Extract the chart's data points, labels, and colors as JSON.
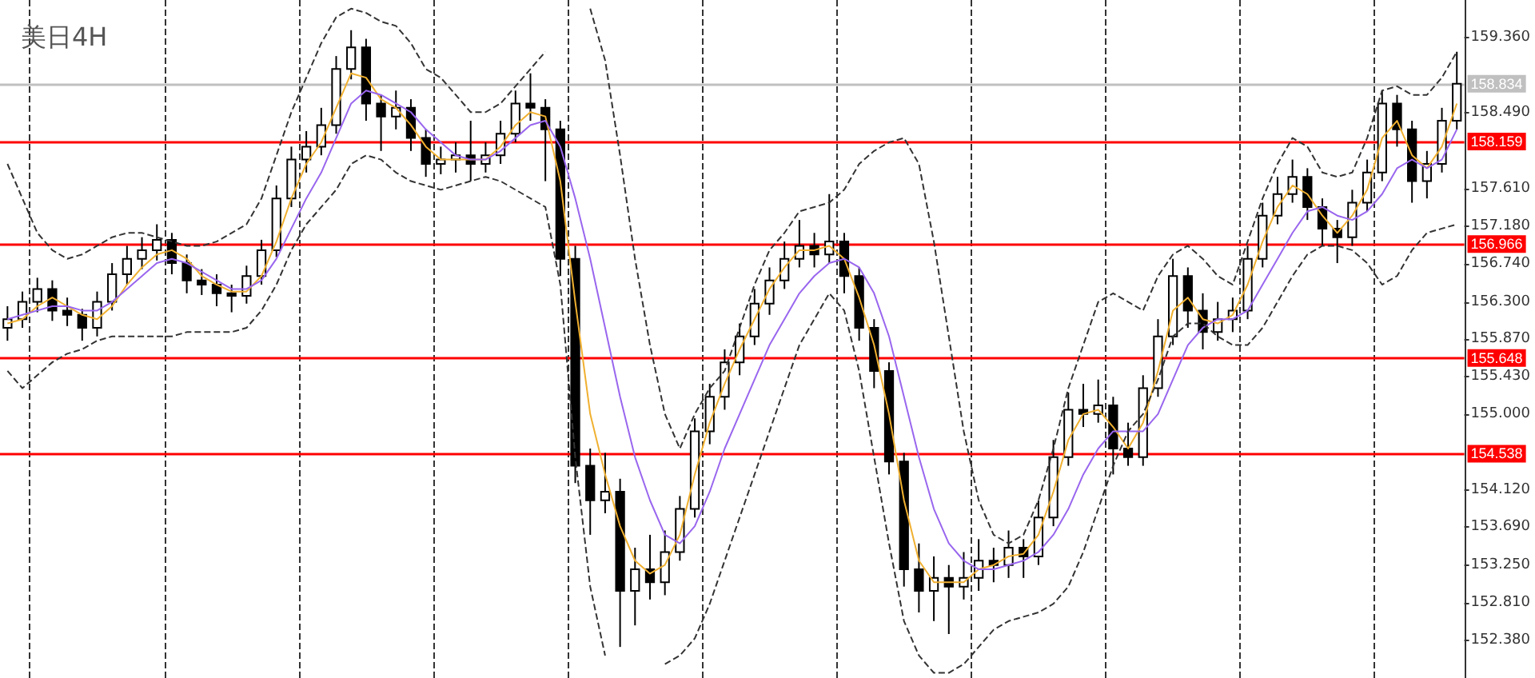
{
  "chart_data": {
    "type": "candlestick",
    "title": "美日4H",
    "categories": [
      null,
      null,
      null,
      null,
      null,
      null,
      null,
      null,
      null,
      null,
      null,
      null,
      null,
      null,
      null,
      null,
      null,
      null,
      null,
      null,
      null,
      null,
      null,
      null,
      null,
      null,
      null,
      null,
      null,
      null,
      null,
      null,
      null,
      null,
      null,
      null,
      null,
      null,
      null,
      null,
      null,
      null,
      null,
      null,
      null,
      null,
      null,
      null,
      null,
      null,
      null,
      null,
      null,
      null,
      null,
      null,
      null,
      null,
      null,
      null,
      null,
      null,
      null,
      null,
      null,
      null,
      null,
      null,
      null,
      null,
      null,
      null,
      null,
      null,
      null,
      null,
      null,
      null,
      null,
      null,
      null,
      null,
      null,
      null,
      null,
      null,
      null,
      null,
      null,
      null,
      null,
      null,
      null,
      null,
      null,
      null,
      null,
      null
    ],
    "series": [
      {
        "color": "#000000",
        "ohlc": [
          [
            156.0,
            156.25,
            155.85,
            156.1
          ],
          [
            156.1,
            156.42,
            156.0,
            156.3
          ],
          [
            156.3,
            156.58,
            156.18,
            156.45
          ],
          [
            156.45,
            156.55,
            156.08,
            156.2
          ],
          [
            156.2,
            156.35,
            156.02,
            156.15
          ],
          [
            156.15,
            156.22,
            155.85,
            156.0
          ],
          [
            156.0,
            156.42,
            155.9,
            156.3
          ],
          [
            156.3,
            156.75,
            156.2,
            156.62
          ],
          [
            156.62,
            156.95,
            156.5,
            156.8
          ],
          [
            156.8,
            157.05,
            156.68,
            156.9
          ],
          [
            156.9,
            157.2,
            156.78,
            157.02
          ],
          [
            157.02,
            157.1,
            156.62,
            156.75
          ],
          [
            156.75,
            156.85,
            156.4,
            156.55
          ],
          [
            156.55,
            156.68,
            156.38,
            156.5
          ],
          [
            156.5,
            156.62,
            156.25,
            156.4
          ],
          [
            156.4,
            156.5,
            156.18,
            156.37
          ],
          [
            156.37,
            156.72,
            156.28,
            156.6
          ],
          [
            156.6,
            157.02,
            156.5,
            156.9
          ],
          [
            156.9,
            157.65,
            156.82,
            157.5
          ],
          [
            157.5,
            158.1,
            157.4,
            157.95
          ],
          [
            157.95,
            158.28,
            157.8,
            158.1
          ],
          [
            158.1,
            158.55,
            158.0,
            158.35
          ],
          [
            158.35,
            159.15,
            158.25,
            159.0
          ],
          [
            159.0,
            159.45,
            158.88,
            159.25
          ],
          [
            159.25,
            159.35,
            158.4,
            158.6
          ],
          [
            158.6,
            158.7,
            158.05,
            158.45
          ],
          [
            158.45,
            158.75,
            158.3,
            158.55
          ],
          [
            158.55,
            158.65,
            158.05,
            158.2
          ],
          [
            158.2,
            158.3,
            157.75,
            157.9
          ],
          [
            157.9,
            158.1,
            157.78,
            157.95
          ],
          [
            157.95,
            158.15,
            157.8,
            158.0
          ],
          [
            158.0,
            158.4,
            157.7,
            157.9
          ],
          [
            157.9,
            158.15,
            157.8,
            158.0
          ],
          [
            158.0,
            158.4,
            157.9,
            158.25
          ],
          [
            158.25,
            158.75,
            158.15,
            158.6
          ],
          [
            158.6,
            158.95,
            158.4,
            158.55
          ],
          [
            158.55,
            158.65,
            157.7,
            158.3
          ],
          [
            158.3,
            158.4,
            156.6,
            156.8
          ],
          [
            156.8,
            156.95,
            154.2,
            154.4
          ],
          [
            154.4,
            154.6,
            153.6,
            154.0
          ],
          [
            154.0,
            154.55,
            153.85,
            154.1
          ],
          [
            154.1,
            154.25,
            152.3,
            152.95
          ],
          [
            152.95,
            153.45,
            152.55,
            153.2
          ],
          [
            153.2,
            153.6,
            152.85,
            153.05
          ],
          [
            153.05,
            153.65,
            152.9,
            153.4
          ],
          [
            153.4,
            154.05,
            153.3,
            153.9
          ],
          [
            153.9,
            154.95,
            153.8,
            154.8
          ],
          [
            154.8,
            155.35,
            154.65,
            155.2
          ],
          [
            155.2,
            155.75,
            155.05,
            155.6
          ],
          [
            155.6,
            156.05,
            155.45,
            155.9
          ],
          [
            155.9,
            156.45,
            155.8,
            156.28
          ],
          [
            156.28,
            156.7,
            156.15,
            156.55
          ],
          [
            156.55,
            157.0,
            156.45,
            156.8
          ],
          [
            156.8,
            157.25,
            156.7,
            156.95
          ],
          [
            156.95,
            157.1,
            156.7,
            156.85
          ],
          [
            156.85,
            157.55,
            156.75,
            157.0
          ],
          [
            157.0,
            157.1,
            156.4,
            156.6
          ],
          [
            156.6,
            156.7,
            155.85,
            156.0
          ],
          [
            156.0,
            156.1,
            155.3,
            155.5
          ],
          [
            155.5,
            155.6,
            154.3,
            154.45
          ],
          [
            154.45,
            154.55,
            153.0,
            153.2
          ],
          [
            153.2,
            153.5,
            152.7,
            152.95
          ],
          [
            152.95,
            153.35,
            152.6,
            153.1
          ],
          [
            153.1,
            153.25,
            152.45,
            153.0
          ],
          [
            153.0,
            153.4,
            152.85,
            153.1
          ],
          [
            153.1,
            153.55,
            152.95,
            153.3
          ],
          [
            153.3,
            153.45,
            153.05,
            153.25
          ],
          [
            153.25,
            153.65,
            153.1,
            153.45
          ],
          [
            153.45,
            153.55,
            153.1,
            153.35
          ],
          [
            153.35,
            154.0,
            153.25,
            153.8
          ],
          [
            153.8,
            154.7,
            153.7,
            154.5
          ],
          [
            154.5,
            155.25,
            154.4,
            155.05
          ],
          [
            155.05,
            155.35,
            154.85,
            155.0
          ],
          [
            155.0,
            155.4,
            154.9,
            155.1
          ],
          [
            155.1,
            155.2,
            154.3,
            154.6
          ],
          [
            154.6,
            154.9,
            154.4,
            154.5
          ],
          [
            154.5,
            155.45,
            154.4,
            155.3
          ],
          [
            155.3,
            156.1,
            155.2,
            155.9
          ],
          [
            155.9,
            156.8,
            155.8,
            156.6
          ],
          [
            156.6,
            156.7,
            156.0,
            156.2
          ],
          [
            156.2,
            156.4,
            155.75,
            155.95
          ],
          [
            155.95,
            156.3,
            155.85,
            156.1
          ],
          [
            156.1,
            156.35,
            155.95,
            156.2
          ],
          [
            156.2,
            156.95,
            156.1,
            156.8
          ],
          [
            156.8,
            157.45,
            156.7,
            157.3
          ],
          [
            157.3,
            157.75,
            157.2,
            157.55
          ],
          [
            157.55,
            157.95,
            157.45,
            157.75
          ],
          [
            157.75,
            157.85,
            157.25,
            157.4
          ],
          [
            157.4,
            157.5,
            156.95,
            157.15
          ],
          [
            157.15,
            157.25,
            156.75,
            157.05
          ],
          [
            157.05,
            157.6,
            156.95,
            157.45
          ],
          [
            157.45,
            157.95,
            157.35,
            157.8
          ],
          [
            157.8,
            158.75,
            157.7,
            158.6
          ],
          [
            158.6,
            158.7,
            158.1,
            158.3
          ],
          [
            158.3,
            158.4,
            157.45,
            157.7
          ],
          [
            157.7,
            158.05,
            157.5,
            157.9
          ],
          [
            157.9,
            158.55,
            157.8,
            158.4
          ],
          [
            158.4,
            159.2,
            158.3,
            158.83
          ]
        ]
      },
      {
        "type": "line",
        "color": "#f0b030",
        "line_style": "solid",
        "values": [
          156.05,
          156.1,
          156.25,
          156.35,
          156.25,
          156.15,
          156.1,
          156.25,
          156.5,
          156.7,
          156.85,
          156.9,
          156.8,
          156.6,
          156.5,
          156.42,
          156.42,
          156.6,
          157.0,
          157.5,
          157.9,
          158.15,
          158.55,
          158.95,
          158.9,
          158.65,
          158.55,
          158.35,
          158.1,
          157.95,
          157.95,
          157.95,
          157.95,
          158.1,
          158.35,
          158.5,
          158.45,
          157.7,
          156.3,
          155.0,
          154.3,
          153.7,
          153.3,
          153.15,
          153.25,
          153.6,
          154.3,
          154.9,
          155.35,
          155.75,
          156.1,
          156.45,
          156.7,
          156.9,
          156.9,
          156.95,
          156.8,
          156.35,
          155.8,
          155.0,
          154.0,
          153.3,
          153.05,
          153.05,
          153.05,
          153.2,
          153.25,
          153.35,
          153.38,
          153.6,
          154.1,
          154.7,
          155.0,
          155.05,
          154.85,
          154.6,
          154.9,
          155.5,
          156.2,
          156.35,
          156.1,
          156.05,
          156.15,
          156.5,
          157.0,
          157.4,
          157.65,
          157.55,
          157.3,
          157.1,
          157.3,
          157.6,
          158.2,
          158.4,
          158.0,
          157.85,
          158.1,
          158.6
        ]
      },
      {
        "type": "line",
        "color": "#9966ee",
        "line_style": "solid",
        "values": [
          156.1,
          156.15,
          156.2,
          156.25,
          156.25,
          156.2,
          156.2,
          156.3,
          156.45,
          156.6,
          156.75,
          156.8,
          156.75,
          156.65,
          156.55,
          156.45,
          156.45,
          156.55,
          156.8,
          157.15,
          157.5,
          157.8,
          158.2,
          158.6,
          158.75,
          158.7,
          158.6,
          158.5,
          158.3,
          158.15,
          158.0,
          157.95,
          157.95,
          158.05,
          158.2,
          158.35,
          158.4,
          158.1,
          157.5,
          156.8,
          156.0,
          155.2,
          154.5,
          154.0,
          153.6,
          153.5,
          153.7,
          154.1,
          154.6,
          155.0,
          155.4,
          155.8,
          156.1,
          156.4,
          156.6,
          156.75,
          156.8,
          156.7,
          156.4,
          155.9,
          155.2,
          154.5,
          153.9,
          153.5,
          153.3,
          153.2,
          153.2,
          153.25,
          153.3,
          153.4,
          153.6,
          153.9,
          154.3,
          154.6,
          154.8,
          154.8,
          154.8,
          155.0,
          155.4,
          155.8,
          156.0,
          156.1,
          156.1,
          156.2,
          156.5,
          156.8,
          157.1,
          157.35,
          157.4,
          157.3,
          157.25,
          157.35,
          157.55,
          157.85,
          157.95,
          157.85,
          157.95,
          158.3
        ]
      },
      {
        "type": "line",
        "color": "#333333",
        "line_style": "dashed",
        "values": [
          157.9,
          157.5,
          157.1,
          156.9,
          156.8,
          156.85,
          156.95,
          157.05,
          157.1,
          157.1,
          157.05,
          157.0,
          156.95,
          156.95,
          157.0,
          157.1,
          157.2,
          157.5,
          158.0,
          158.5,
          158.9,
          159.3,
          159.6,
          159.7,
          159.65,
          159.55,
          159.5,
          159.3,
          159.0,
          158.9,
          158.7,
          158.5,
          158.5,
          158.6,
          158.8,
          159.0,
          159.2,
          null,
          null,
          159.7,
          159.1,
          158.0,
          156.8,
          155.8,
          155.0,
          154.6,
          155.0,
          155.3,
          155.5,
          156.0,
          156.5,
          156.9,
          157.1,
          157.35,
          157.4,
          157.45,
          157.6,
          157.9,
          158.05,
          158.15,
          158.2,
          157.9,
          157.0,
          155.9,
          154.8,
          154.0,
          153.6,
          153.5,
          153.6,
          154.0,
          154.6,
          155.3,
          155.8,
          156.3,
          156.4,
          156.3,
          156.2,
          156.6,
          156.85,
          156.95,
          156.8,
          156.6,
          156.5,
          157.0,
          157.5,
          157.9,
          158.2,
          158.1,
          157.8,
          157.75,
          157.8,
          158.2,
          158.75,
          158.8,
          158.7,
          158.7,
          158.9,
          159.2
        ]
      },
      {
        "type": "line",
        "color": "#333333",
        "line_style": "dashed",
        "values": [
          155.5,
          155.3,
          155.45,
          155.6,
          155.7,
          155.75,
          155.85,
          155.9,
          155.9,
          155.9,
          155.9,
          155.9,
          155.95,
          155.95,
          155.95,
          155.95,
          156.0,
          156.2,
          156.5,
          156.9,
          157.2,
          157.4,
          157.6,
          157.9,
          158.0,
          157.95,
          157.8,
          157.7,
          157.65,
          157.6,
          157.65,
          157.7,
          157.75,
          157.7,
          157.6,
          157.5,
          157.4,
          156.5,
          154.5,
          153.0,
          152.2,
          null,
          null,
          null,
          152.1,
          152.2,
          152.4,
          152.8,
          153.3,
          153.8,
          154.3,
          154.8,
          155.3,
          155.8,
          156.1,
          156.4,
          156.2,
          155.5,
          154.5,
          153.5,
          152.6,
          152.2,
          152.0,
          152.0,
          152.1,
          152.3,
          152.5,
          152.6,
          152.65,
          152.7,
          152.8,
          153.0,
          153.4,
          153.9,
          154.4,
          154.8,
          155.0,
          155.4,
          155.9,
          156.05,
          156.05,
          155.9,
          155.8,
          155.8,
          156.0,
          156.3,
          156.6,
          156.85,
          156.95,
          156.95,
          156.9,
          156.75,
          156.5,
          156.6,
          156.9,
          157.1,
          157.15,
          157.2
        ]
      }
    ],
    "ylim": [
      151.94,
      159.8
    ],
    "yticks": [
      {
        "value": 159.36,
        "label": "159.360"
      },
      {
        "value": 158.49,
        "label": "158.490"
      },
      {
        "value": 157.61,
        "label": "157.610"
      },
      {
        "value": 157.18,
        "label": "157.180"
      },
      {
        "value": 156.74,
        "label": "156.740"
      },
      {
        "value": 156.3,
        "label": "156.300"
      },
      {
        "value": 155.87,
        "label": "155.870"
      },
      {
        "value": 155.43,
        "label": "155.430"
      },
      {
        "value": 155.0,
        "label": "155.000"
      },
      {
        "value": 154.12,
        "label": "154.120"
      },
      {
        "value": 153.69,
        "label": "153.690"
      },
      {
        "value": 153.25,
        "label": "153.250"
      },
      {
        "value": 152.81,
        "label": "152.810"
      },
      {
        "value": 152.38,
        "label": "152.380"
      }
    ],
    "ref_lines": [
      {
        "axis": "y",
        "value": 158.834,
        "label": "158.834",
        "color": "#c0c0c0"
      },
      {
        "axis": "y",
        "value": 158.159,
        "label": "158.159",
        "color": "#ff0000"
      },
      {
        "axis": "y",
        "value": 156.966,
        "label": "156.966",
        "color": "#ff0000"
      },
      {
        "axis": "y",
        "value": 155.648,
        "label": "155.648",
        "color": "#ff0000"
      },
      {
        "axis": "y",
        "value": 154.538,
        "label": "154.538",
        "color": "#ff0000"
      }
    ],
    "grid": "x"
  }
}
